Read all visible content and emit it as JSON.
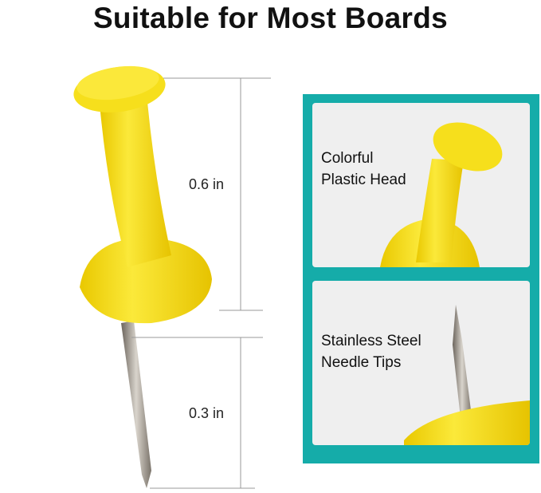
{
  "title": "Suitable for Most Boards",
  "dimensions": {
    "head_height": "0.6 in",
    "needle_length": "0.3 in"
  },
  "features": [
    {
      "label": "Colorful\nPlastic Head"
    },
    {
      "label": "Stainless Steel\nNeedle Tips"
    }
  ],
  "colors": {
    "accent": "#15aca9",
    "pin": "#f4dc12",
    "card": "#efefef"
  }
}
